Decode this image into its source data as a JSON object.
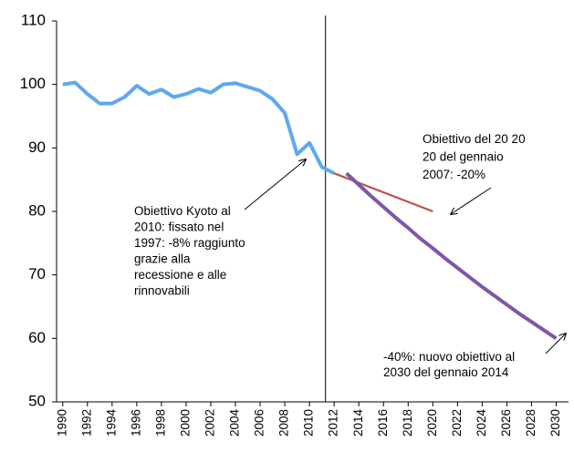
{
  "chart_data": {
    "type": "line",
    "xlim": [
      1989.5,
      2031
    ],
    "xticks": [
      1990,
      1992,
      1994,
      1996,
      1998,
      2000,
      2002,
      2004,
      2006,
      2008,
      2010,
      2012,
      2014,
      2016,
      2018,
      2020,
      2022,
      2024,
      2026,
      2028,
      2030
    ],
    "ylim": [
      50,
      110
    ],
    "yticks": [
      50,
      60,
      70,
      80,
      90,
      100,
      110
    ],
    "vline_x": 2011.3,
    "series": [
      {
        "color": "#5ea8f0",
        "width": 4,
        "x": [
          1990,
          1991,
          1992,
          1993,
          1994,
          1995,
          1996,
          1997,
          1998,
          1999,
          2000,
          2001,
          2002,
          2003,
          2004,
          2005,
          2006,
          2007,
          2008,
          2009,
          2010,
          2011,
          2012
        ],
        "values": [
          100,
          100.3,
          98.5,
          97,
          97,
          98,
          99.8,
          98.5,
          99.2,
          98,
          98.5,
          99.3,
          98.7,
          100,
          100.2,
          99.6,
          99,
          97.7,
          95.5,
          89,
          90.8,
          87,
          86
        ]
      },
      {
        "color": "#c0504d",
        "width": 2.2,
        "x": [
          2012,
          2020
        ],
        "values": [
          86,
          80
        ]
      },
      {
        "color": "#7e57a8",
        "width": 4,
        "x": [
          2013,
          2014,
          2015,
          2016,
          2017,
          2018,
          2019,
          2020,
          2021,
          2022,
          2023,
          2024,
          2025,
          2026,
          2027,
          2028,
          2029,
          2030
        ],
        "values": [
          86,
          84.2,
          82.4,
          80.7,
          79.0,
          77.4,
          75.7,
          74.2,
          72.6,
          71.1,
          69.6,
          68.1,
          66.7,
          65.3,
          63.9,
          62.6,
          61.3,
          60.0
        ]
      }
    ],
    "annotations": [
      {
        "lines": [
          "Obiettivo Kyoto al",
          "2010:  fissato nel",
          "1997: -8% raggiunto",
          "grazie alla",
          "recessione e alle",
          "rinnovabili"
        ]
      },
      {
        "lines": [
          "Obiettivo del 20 20",
          "20 del gennaio",
          "2007: -20%"
        ]
      },
      {
        "lines": [
          "-40%: nuovo obiettivo al",
          "2030 del gennaio 2014"
        ]
      }
    ]
  }
}
